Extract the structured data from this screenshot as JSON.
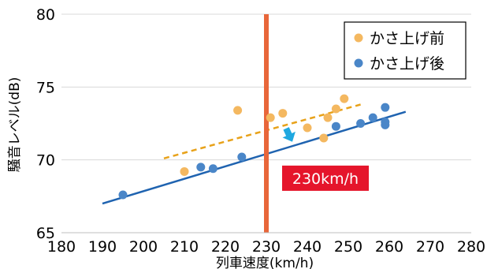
{
  "chart_data": {
    "type": "scatter",
    "xlabel": "列車速度(km/h)",
    "ylabel": "騒音レベル(dB)",
    "xlim": [
      180,
      280
    ],
    "ylim": [
      65,
      80
    ],
    "x_ticks": [
      "180",
      "190",
      "200",
      "210",
      "220",
      "230",
      "240",
      "250",
      "260",
      "270",
      "280"
    ],
    "y_ticks": [
      "65",
      "70",
      "75",
      "80"
    ],
    "grid": "horizontal",
    "legend_position": "top-right",
    "series": [
      {
        "name": "かさ上げ前",
        "color": "#F4B860",
        "points": [
          [
            210,
            69.2
          ],
          [
            223,
            73.4
          ],
          [
            231,
            72.9
          ],
          [
            234,
            73.2
          ],
          [
            240,
            72.2
          ],
          [
            244,
            71.5
          ],
          [
            245,
            72.9
          ],
          [
            247,
            73.5
          ],
          [
            249,
            74.2
          ]
        ],
        "trendline": {
          "style": "dashed",
          "color": "#E8A21A",
          "from": [
            205,
            70.1
          ],
          "to": [
            253,
            73.8
          ]
        }
      },
      {
        "name": "かさ上げ後",
        "color": "#4A86C8",
        "points": [
          [
            195,
            67.6
          ],
          [
            214,
            69.5
          ],
          [
            217,
            69.4
          ],
          [
            224,
            70.2
          ],
          [
            247,
            72.3
          ],
          [
            253,
            72.5
          ],
          [
            256,
            72.9
          ],
          [
            259,
            72.6
          ],
          [
            259,
            72.4
          ],
          [
            259,
            73.6
          ]
        ],
        "trendline": {
          "style": "solid",
          "color": "#1F63B0",
          "from": [
            190,
            67.0
          ],
          "to": [
            264,
            73.3
          ]
        }
      }
    ],
    "annotations": {
      "vline": {
        "x": 230,
        "color": "#E8663A"
      },
      "callout": {
        "text": "230km/h",
        "color": "#E5152B",
        "at": [
          230,
          68.2
        ]
      },
      "arrow": {
        "from": [
          235.5,
          72.2
        ],
        "to": [
          235.5,
          71.3
        ],
        "color": "#1FA8E0"
      }
    }
  }
}
